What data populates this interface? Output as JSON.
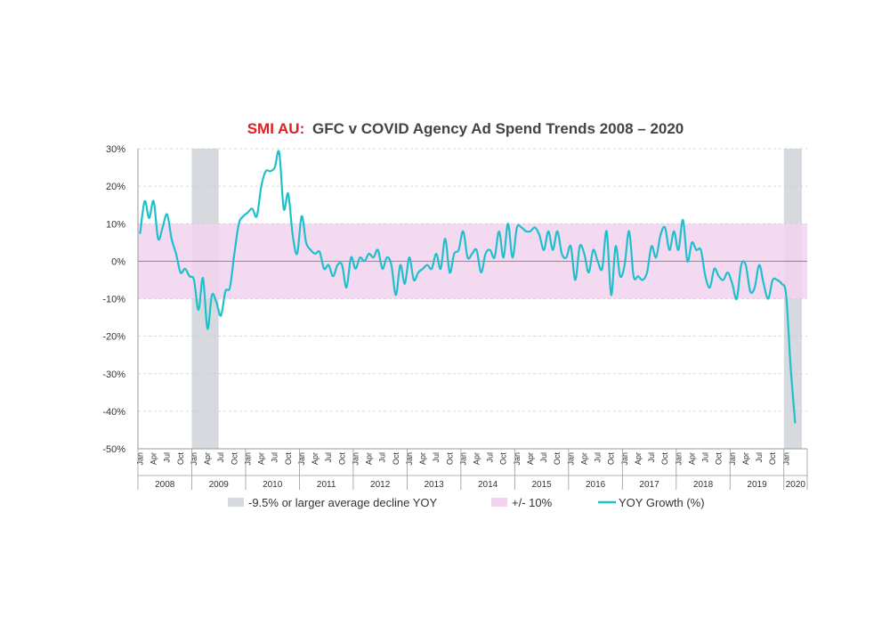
{
  "chart_data": {
    "type": "line",
    "title_prefix": "SMI AU:",
    "title": "GFC v COVID Agency Ad Spend Trends 2008 – 2020",
    "ylim": [
      -50,
      30
    ],
    "y_ticks": [
      "30%",
      "20%",
      "10%",
      "0%",
      "-10%",
      "-20%",
      "-30%",
      "-40%",
      "-50%"
    ],
    "y_tick_values": [
      30,
      20,
      10,
      0,
      -10,
      -20,
      -30,
      -40,
      -50
    ],
    "x_start": "2008-01",
    "month_labels": [
      "Jan",
      "Apr",
      "Jul",
      "Oct"
    ],
    "years": [
      "2008",
      "2009",
      "2010",
      "2011",
      "2012",
      "2013",
      "2014",
      "2015",
      "2016",
      "2017",
      "2018",
      "2019",
      "2020"
    ],
    "shaded_regions": [
      {
        "start": "2009-01",
        "end": "2009-06",
        "label": "-9.5% or larger average decline YOY"
      },
      {
        "start": "2020-01",
        "end": "2020-04",
        "label": "-9.5% or larger average decline YOY"
      }
    ],
    "band": {
      "low": -10,
      "high": 10,
      "label": "+/- 10%"
    },
    "series": [
      {
        "name": "YOY Growth (%)",
        "values": [
          7.5,
          16,
          11.5,
          16,
          6,
          9,
          12.5,
          6,
          2,
          -3,
          -2,
          -4,
          -5,
          -13,
          -4.5,
          -18,
          -9,
          -11,
          -14.5,
          -8,
          -7,
          2,
          10,
          12,
          13,
          14,
          12,
          20,
          24,
          24,
          25,
          29,
          14,
          18,
          7,
          2,
          12,
          5,
          3,
          2,
          2.5,
          -2,
          -1,
          -4,
          -1,
          -1,
          -7,
          1,
          -2,
          1,
          0,
          2,
          1,
          3,
          -2,
          1,
          -1,
          -9,
          -1,
          -6,
          1,
          -5,
          -3,
          -2,
          -1,
          -2,
          2,
          -2,
          6,
          -3,
          2,
          3,
          8,
          1,
          2,
          3,
          -3,
          2,
          3,
          1,
          8,
          1,
          10,
          1,
          9,
          9,
          8,
          8,
          9,
          7,
          3,
          8,
          3,
          8,
          2,
          1,
          4,
          -5,
          4,
          2,
          -3,
          3,
          0,
          -2,
          8,
          -9,
          4,
          -4,
          -1,
          8,
          -4,
          -4,
          -5,
          -3,
          4,
          1,
          7,
          9,
          3,
          8,
          3,
          11,
          0,
          5,
          3,
          3,
          -4,
          -7,
          -2,
          -4,
          -5,
          -3,
          -6,
          -10,
          -1,
          -1,
          -8,
          -7,
          -1,
          -6,
          -10,
          -5,
          -5,
          -6,
          -9,
          -28,
          -43
        ]
      }
    ],
    "legend": [
      {
        "label": "-9.5% or larger average decline YOY",
        "kind": "box",
        "color": "#d6d9de"
      },
      {
        "label": "+/- 10%",
        "kind": "box",
        "color": "#f2d3ee"
      },
      {
        "label": "YOY Growth (%)",
        "kind": "line",
        "color": "#1fbfcc"
      }
    ],
    "legend_position": "bottom",
    "grid": true,
    "colors": {
      "title_prefix": "#e02020",
      "title": "#444444",
      "line": "#1fbfcc",
      "band": "#f2d3ee",
      "shade": "#d6d9de",
      "grid": "#cccccc",
      "zero": "#888888"
    }
  }
}
